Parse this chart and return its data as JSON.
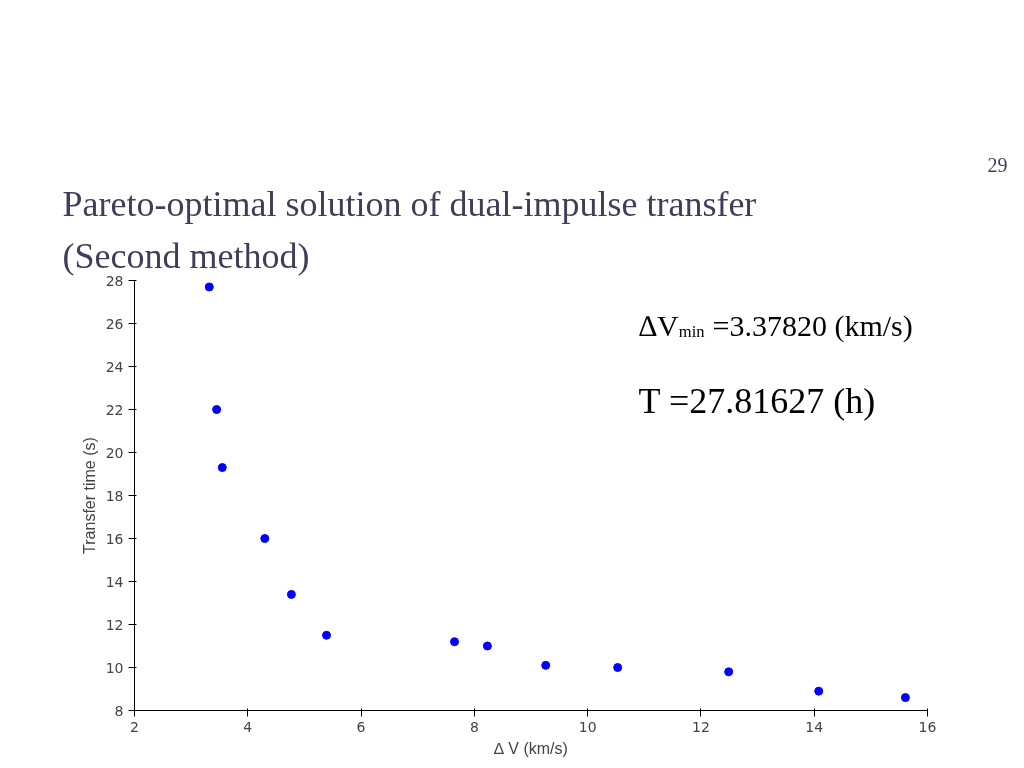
{
  "chart_data": {
    "type": "scatter",
    "title": "Pareto-optimal solution of dual-impulse transfer",
    "subtitle": "(Second method)",
    "xlabel": "∆ V (km/s)",
    "ylabel": "Transfer time (s)",
    "annotations": [
      "29",
      "∆V$_{min}$ =3.37820   (km/s)",
      "T =27.81627  (h)"
    ],
    "x": [
      3.32,
      3.45,
      3.55,
      4.3,
      4.77,
      5.39,
      7.65,
      8.23,
      9.26,
      10.53,
      12.49,
      14.08,
      15.61
    ],
    "series": [
      {
        "color": "#0000ff",
        "values": [
          27.7,
          22.0,
          19.3,
          16.0,
          13.4,
          11.5,
          11.2,
          11.0,
          10.1,
          10.0,
          9.8,
          8.9,
          8.6
        ]
      }
    ],
    "xlim": [
      2,
      16
    ],
    "xticks": [
      2,
      4,
      6,
      8,
      10,
      12,
      14,
      16
    ],
    "ylim": [
      8,
      28
    ],
    "yticks": [
      8,
      10,
      12,
      14,
      16,
      18,
      20,
      22,
      24,
      26,
      28
    ],
    "grid": false,
    "marker": "circle"
  }
}
